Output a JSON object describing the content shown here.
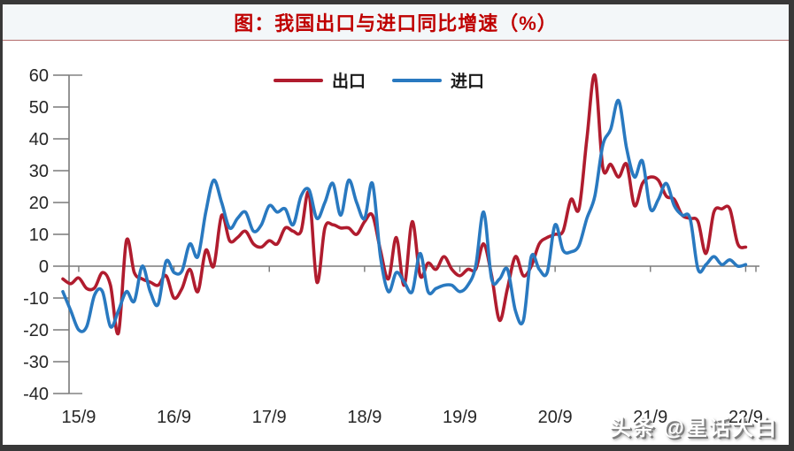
{
  "header": {
    "title": "图：我国出口与进口同比增速（%）"
  },
  "watermark": {
    "text": "头条 @星话大白"
  },
  "colors": {
    "export_line": "#b01c2e",
    "import_line": "#2979c0",
    "title_red": "#bf0000",
    "separator_line": "#b36b6b",
    "frame_border": "#383838",
    "axis": "#7a7a7a",
    "tick_text": "#262626",
    "title_bar_bg": "#f3f7f9"
  },
  "chart_data": {
    "type": "line",
    "title": "图：我国出口与进口同比增速（%）",
    "xlabel": "",
    "ylabel": "",
    "ylim": [
      -40,
      60
    ],
    "y_ticks": [
      60,
      50,
      40,
      30,
      20,
      10,
      0,
      -10,
      -20,
      -30,
      -40
    ],
    "x_tick_labels": [
      "15/9",
      "16/9",
      "17/9",
      "18/9",
      "19/9",
      "20/9",
      "21/9",
      "22/9"
    ],
    "x_start": "2015-07",
    "x_end": "2022-09",
    "frequency": "monthly",
    "grid": "zero-line-only",
    "legend_position": "top-center",
    "series": [
      {
        "name": "出口",
        "color": "#b01c2e",
        "values": [
          -4,
          -5.5,
          -3.7,
          -7,
          -6.8,
          -2,
          -6,
          -21,
          8,
          -2,
          -4,
          -5,
          -6,
          -3,
          -10,
          -7,
          -1,
          -8,
          5,
          0,
          16,
          8,
          9,
          11,
          7,
          6,
          8,
          7,
          12,
          11,
          11,
          23,
          -5,
          12,
          13,
          12,
          12,
          10,
          14,
          16,
          5,
          -4,
          9,
          -6,
          14,
          -3,
          1,
          -1,
          3,
          -1,
          -3,
          -1,
          -1,
          7,
          -3,
          -17,
          -7,
          3,
          -3,
          0,
          7,
          9,
          10,
          11,
          21,
          18,
          40,
          60,
          31,
          32,
          28,
          32,
          19,
          26,
          28,
          27,
          22,
          21,
          16,
          15,
          14,
          4,
          17,
          18,
          18,
          7,
          6
        ]
      },
      {
        "name": "进口",
        "color": "#2979c0",
        "values": [
          -8,
          -14,
          -20,
          -19,
          -9,
          -8,
          -19,
          -14,
          -8,
          -11,
          0,
          -8,
          -12,
          1.5,
          -2,
          -1.5,
          7,
          3,
          17,
          27,
          20,
          12,
          15,
          17,
          11,
          13,
          19,
          17,
          18,
          13,
          22,
          24,
          15,
          20,
          26,
          16,
          27,
          20,
          15,
          26,
          3,
          -8,
          -2,
          -5,
          -8,
          4,
          -8,
          -7,
          -6,
          -6,
          -8,
          -6,
          0,
          17,
          -4,
          -4,
          -1,
          -14,
          -17,
          3,
          -1,
          -2,
          13,
          5,
          4.5,
          6.5,
          15,
          22,
          38,
          43,
          52,
          37,
          28,
          33,
          18,
          21,
          26,
          19,
          16,
          15,
          -1,
          0.5,
          3,
          0.5,
          2,
          0,
          0.5
        ]
      }
    ]
  }
}
